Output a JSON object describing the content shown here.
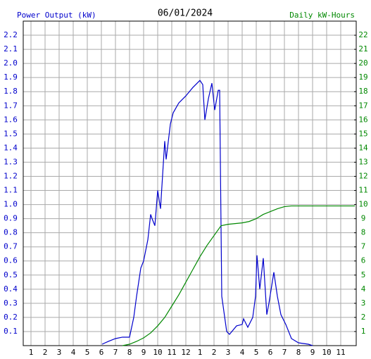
{
  "chart_data": {
    "type": "line",
    "title": "06/01/2024",
    "ylabel": "Power Output (kW)",
    "y2label": "Daily kW-Hours",
    "xlim": [
      0.45,
      24.1
    ],
    "xticks": [
      1,
      2,
      3,
      4,
      5,
      6,
      7,
      8,
      9,
      10,
      11,
      12,
      {
        "value": 13,
        "label": "1"
      },
      {
        "value": 14,
        "label": "2"
      },
      {
        "value": 15,
        "label": "3"
      },
      {
        "value": 16,
        "label": "4"
      },
      {
        "value": 17,
        "label": "5"
      },
      {
        "value": 18,
        "label": "6"
      },
      {
        "value": 19,
        "label": "7"
      },
      {
        "value": 20,
        "label": "8"
      },
      {
        "value": 21,
        "label": "9"
      },
      {
        "value": 22,
        "label": "10"
      },
      {
        "value": 23,
        "label": "11"
      }
    ],
    "ylim": [
      0,
      2.3
    ],
    "yticks": [
      0.1,
      0.2,
      0.3,
      0.4,
      0.5,
      0.6,
      0.7,
      0.8,
      0.9,
      {
        "value": 1,
        "label": "1.0"
      },
      1.1,
      1.2,
      1.3,
      1.4,
      1.5,
      1.6,
      1.7,
      1.8,
      1.9,
      {
        "value": 2,
        "label": "2.0"
      },
      2.1,
      2.2
    ],
    "y2lim": [
      0,
      23
    ],
    "y2ticks": [
      1,
      2,
      3,
      4,
      5,
      6,
      7,
      8,
      9,
      10,
      11,
      12,
      13,
      14,
      15,
      16,
      17,
      18,
      19,
      20,
      21,
      22
    ],
    "grid": true,
    "series": [
      {
        "color": "#0000cc",
        "x": [
          6.05,
          6.5,
          7,
          7.5,
          8,
          8.3,
          8.5,
          8.8,
          9,
          9.3,
          9.5,
          9.6,
          9.8,
          10,
          10.2,
          10.5,
          10.6,
          10.9,
          11.1,
          11.5,
          12,
          12.5,
          12.8,
          13,
          13.2,
          13.35,
          13.6,
          13.85,
          14.05,
          14.3,
          14.4,
          14.55,
          14.9,
          15.1,
          15.6,
          16,
          16.1,
          16.4,
          16.75,
          16.95,
          17.05,
          17.25,
          17.5,
          17.75,
          17.9,
          18.25,
          18.5,
          18.75,
          19.1,
          19.5,
          20,
          20.7,
          21
        ],
        "values": [
          0.01,
          0.03,
          0.05,
          0.06,
          0.06,
          0.2,
          0.35,
          0.55,
          0.6,
          0.75,
          0.93,
          0.9,
          0.85,
          1.1,
          0.97,
          1.45,
          1.32,
          1.57,
          1.65,
          1.72,
          1.77,
          1.83,
          1.86,
          1.88,
          1.85,
          1.6,
          1.75,
          1.86,
          1.67,
          1.81,
          1.81,
          0.35,
          0.1,
          0.08,
          0.14,
          0.15,
          0.19,
          0.13,
          0.2,
          0.35,
          0.64,
          0.4,
          0.62,
          0.22,
          0.3,
          0.52,
          0.35,
          0.22,
          0.15,
          0.05,
          0.02,
          0.01,
          0
        ]
      },
      {
        "color": "#008800",
        "axis": "y2",
        "x": [
          7.5,
          8,
          8.5,
          9,
          9.5,
          10,
          10.5,
          11,
          11.5,
          12,
          12.5,
          13,
          13.5,
          14,
          14.5,
          15,
          16,
          16.5,
          17,
          17.5,
          18,
          18.5,
          19,
          19.5,
          20,
          22,
          24
        ],
        "values": [
          0,
          0.1,
          0.3,
          0.55,
          0.9,
          1.4,
          2,
          2.8,
          3.6,
          4.5,
          5.4,
          6.3,
          7.1,
          7.8,
          8.5,
          8.6,
          8.7,
          8.8,
          9,
          9.3,
          9.5,
          9.7,
          9.85,
          9.9,
          9.9,
          9.9,
          9.9
        ]
      }
    ]
  }
}
